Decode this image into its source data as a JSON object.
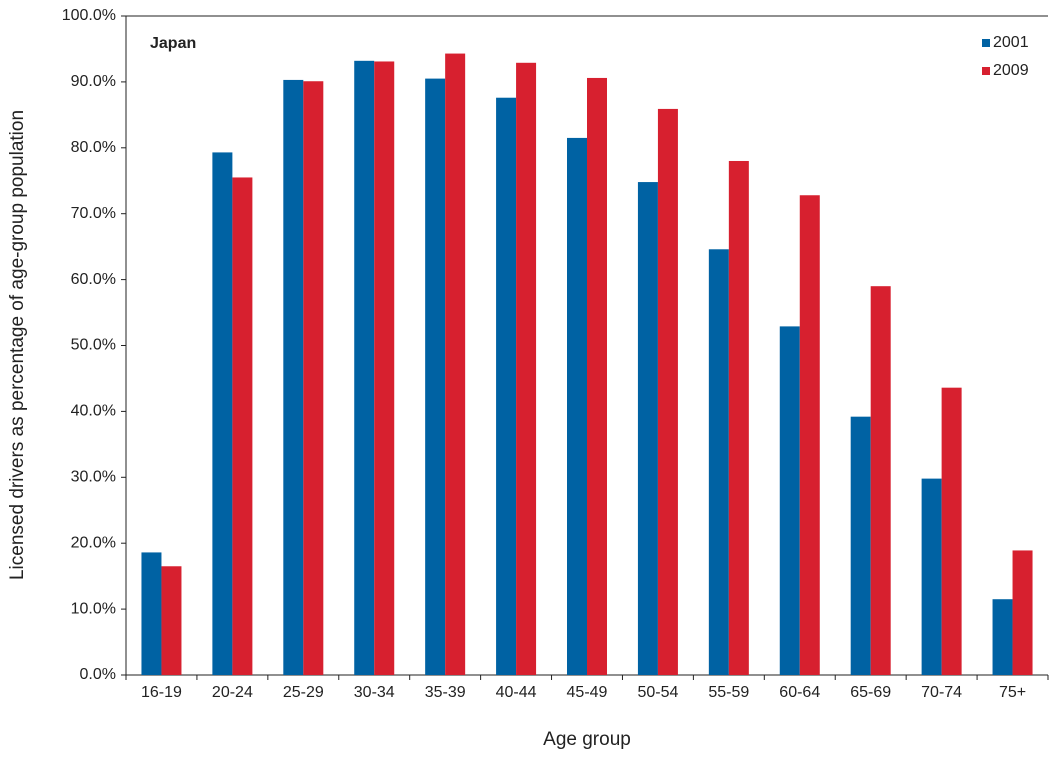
{
  "chart_data": {
    "type": "bar",
    "annotation": "Japan",
    "x_label": "Age group",
    "y_label": "Licensed drivers as percentage of age-group population",
    "categories": [
      "16-19",
      "20-24",
      "25-29",
      "30-34",
      "35-39",
      "40-44",
      "45-49",
      "50-54",
      "55-59",
      "60-64",
      "65-69",
      "70-74",
      "75+"
    ],
    "series": [
      {
        "name": "2001",
        "color": "#0062a3",
        "values": [
          18.6,
          79.3,
          90.3,
          93.2,
          90.5,
          87.6,
          81.5,
          74.8,
          64.6,
          52.9,
          39.2,
          29.8,
          11.5
        ]
      },
      {
        "name": "2009",
        "color": "#d7202f",
        "values": [
          16.5,
          75.5,
          90.1,
          93.1,
          94.3,
          92.9,
          90.6,
          85.9,
          78.0,
          72.8,
          59.0,
          43.6,
          18.9
        ]
      }
    ],
    "ylim": [
      0,
      100
    ],
    "yticks": [
      {
        "value": 0,
        "label": "0.0%"
      },
      {
        "value": 10,
        "label": "10.0%"
      },
      {
        "value": 20,
        "label": "20.0%"
      },
      {
        "value": 30,
        "label": "30.0%"
      },
      {
        "value": 40,
        "label": "40.0%"
      },
      {
        "value": 50,
        "label": "50.0%"
      },
      {
        "value": 60,
        "label": "60.0%"
      },
      {
        "value": 70,
        "label": "70.0%"
      },
      {
        "value": 80,
        "label": "80.0%"
      },
      {
        "value": 90,
        "label": "90.0%"
      },
      {
        "value": 100,
        "label": "100.0%"
      }
    ],
    "grid": false,
    "legend": "top-right"
  }
}
